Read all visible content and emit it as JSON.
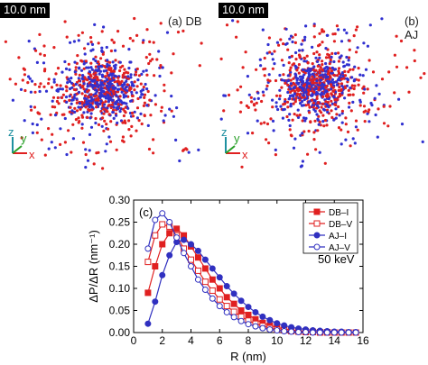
{
  "panels": {
    "a": {
      "scalebar": "10.0 nm",
      "label": "(a) DB"
    },
    "b": {
      "scalebar": "10.0 nm",
      "label": "(b) AJ"
    }
  },
  "axes_triad": {
    "z": "z",
    "y": "y",
    "x": "x"
  },
  "colors": {
    "interstitial": "#e02020",
    "vacancy": "#3030d0",
    "axis_z": "#1e90a0",
    "axis_y": "#2aa02a",
    "axis_x": "#e02020"
  },
  "chart_data": {
    "type": "line",
    "panel_label": "(c)",
    "xlabel": "R (nm)",
    "ylabel": "ΔP/ΔR (nm⁻¹)",
    "annotation": "50 keV",
    "xlim": [
      0,
      16
    ],
    "ylim": [
      0,
      0.3
    ],
    "xticks": [
      "0",
      "2",
      "4",
      "6",
      "8",
      "10",
      "12",
      "14",
      "16"
    ],
    "yticks": [
      "0.00",
      "0.05",
      "0.10",
      "0.15",
      "0.20",
      "0.25",
      "0.30"
    ],
    "legend_position": "top-right",
    "series": [
      {
        "name": "DB–I",
        "color": "#e02020",
        "marker": "square",
        "filled": true,
        "x": [
          1,
          1.5,
          2,
          2.5,
          3,
          3.5,
          4,
          4.5,
          5,
          5.5,
          6,
          6.5,
          7,
          7.5,
          8,
          8.5,
          9,
          9.5,
          10,
          10.5,
          11,
          11.5,
          12,
          12.5,
          13,
          13.5,
          14,
          14.5,
          15,
          15.5
        ],
        "y": [
          0.09,
          0.15,
          0.2,
          0.225,
          0.235,
          0.22,
          0.195,
          0.17,
          0.145,
          0.12,
          0.1,
          0.08,
          0.065,
          0.05,
          0.04,
          0.03,
          0.022,
          0.016,
          0.012,
          0.008,
          0.006,
          0.004,
          0.003,
          0.002,
          0.001,
          0.001,
          0.0,
          0.0,
          0.0,
          0.0
        ]
      },
      {
        "name": "DB–V",
        "color": "#e02020",
        "marker": "square",
        "filled": false,
        "x": [
          1,
          1.5,
          2,
          2.5,
          3,
          3.5,
          4,
          4.5,
          5,
          5.5,
          6,
          6.5,
          7,
          7.5,
          8,
          8.5,
          9,
          9.5,
          10,
          10.5,
          11,
          11.5,
          12,
          12.5,
          13,
          13.5,
          14,
          14.5,
          15,
          15.5
        ],
        "y": [
          0.16,
          0.22,
          0.245,
          0.24,
          0.22,
          0.19,
          0.165,
          0.14,
          0.115,
          0.095,
          0.075,
          0.06,
          0.047,
          0.036,
          0.027,
          0.02,
          0.015,
          0.01,
          0.007,
          0.005,
          0.003,
          0.002,
          0.001,
          0.001,
          0.0,
          0.0,
          0.0,
          0.0,
          0.0,
          0.0
        ]
      },
      {
        "name": "AJ–I",
        "color": "#3030c0",
        "marker": "circle",
        "filled": true,
        "x": [
          1,
          1.5,
          2,
          2.5,
          3,
          3.5,
          4,
          4.5,
          5,
          5.5,
          6,
          6.5,
          7,
          7.5,
          8,
          8.5,
          9,
          9.5,
          10,
          10.5,
          11,
          11.5,
          12,
          12.5,
          13,
          13.5,
          14,
          14.5,
          15,
          15.5
        ],
        "y": [
          0.02,
          0.07,
          0.13,
          0.175,
          0.205,
          0.21,
          0.2,
          0.185,
          0.165,
          0.145,
          0.125,
          0.105,
          0.088,
          0.072,
          0.058,
          0.046,
          0.036,
          0.028,
          0.021,
          0.016,
          0.012,
          0.009,
          0.007,
          0.005,
          0.004,
          0.003,
          0.002,
          0.002,
          0.001,
          0.001
        ]
      },
      {
        "name": "AJ–V",
        "color": "#3030c0",
        "marker": "circle",
        "filled": false,
        "x": [
          1,
          1.5,
          2,
          2.5,
          3,
          3.5,
          4,
          4.5,
          5,
          5.5,
          6,
          6.5,
          7,
          7.5,
          8,
          8.5,
          9,
          9.5,
          10,
          10.5,
          11,
          11.5,
          12,
          12.5,
          13,
          13.5,
          14,
          14.5,
          15,
          15.5
        ],
        "y": [
          0.19,
          0.255,
          0.27,
          0.25,
          0.215,
          0.18,
          0.15,
          0.12,
          0.097,
          0.077,
          0.06,
          0.046,
          0.035,
          0.026,
          0.019,
          0.014,
          0.01,
          0.007,
          0.005,
          0.003,
          0.002,
          0.001,
          0.001,
          0.0,
          0.0,
          0.0,
          0.0,
          0.0,
          0.0,
          0.0
        ]
      }
    ]
  }
}
